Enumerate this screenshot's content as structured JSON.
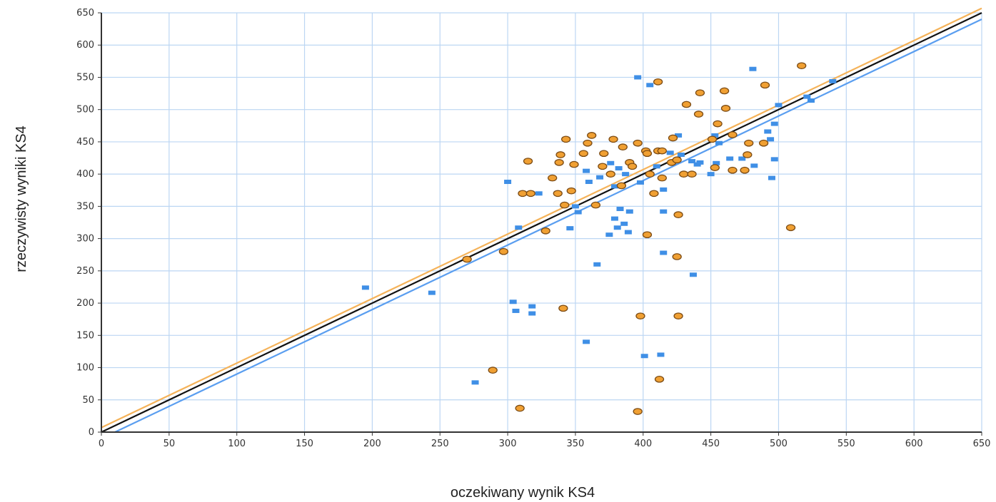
{
  "chart_data": {
    "type": "scatter",
    "title": "",
    "xlabel": "oczekiwany wynik KS4",
    "ylabel": "rzeczywisty wyniki KS4",
    "xlim": [
      0,
      650
    ],
    "ylim": [
      0,
      650
    ],
    "x_ticks": [
      0,
      50,
      100,
      150,
      200,
      250,
      300,
      350,
      400,
      450,
      500,
      550,
      600,
      650
    ],
    "y_ticks": [
      0,
      50,
      100,
      150,
      200,
      250,
      300,
      350,
      400,
      450,
      500,
      550,
      600,
      650
    ],
    "grid": true,
    "legend": "none",
    "colors": {
      "grid": "#bcd6f3",
      "axis": "#333333",
      "blue_marker": "#3f8fe6",
      "orange_marker_fill": "#f0a033",
      "orange_marker_stroke": "#7a4a14",
      "line_black": "#111111",
      "line_orange": "#f5b35a",
      "line_blue": "#5a9ef0"
    },
    "lines": [
      {
        "color": "orange",
        "points": [
          [
            0,
            7
          ],
          [
            650,
            657
          ]
        ]
      },
      {
        "color": "black",
        "points": [
          [
            0,
            0
          ],
          [
            650,
            650
          ]
        ]
      },
      {
        "color": "blue",
        "points": [
          [
            10,
            0
          ],
          [
            650,
            640
          ]
        ]
      }
    ],
    "series": [
      {
        "marker": "square",
        "color": "blue",
        "points": [
          [
            195,
            224
          ],
          [
            244,
            216
          ],
          [
            276,
            77
          ],
          [
            300,
            388
          ],
          [
            304,
            202
          ],
          [
            306,
            188
          ],
          [
            308,
            317
          ],
          [
            318,
            184
          ],
          [
            318,
            195
          ],
          [
            323,
            370
          ],
          [
            346,
            316
          ],
          [
            350,
            350
          ],
          [
            352,
            341
          ],
          [
            358,
            405
          ],
          [
            358,
            140
          ],
          [
            360,
            388
          ],
          [
            366,
            260
          ],
          [
            368,
            395
          ],
          [
            375,
            306
          ],
          [
            376,
            417
          ],
          [
            379,
            381
          ],
          [
            379,
            331
          ],
          [
            381,
            317
          ],
          [
            382,
            409
          ],
          [
            383,
            346
          ],
          [
            386,
            323
          ],
          [
            387,
            400
          ],
          [
            389,
            310
          ],
          [
            390,
            342
          ],
          [
            396,
            550
          ],
          [
            398,
            387
          ],
          [
            401,
            118
          ],
          [
            405,
            538
          ],
          [
            410,
            412
          ],
          [
            413,
            120
          ],
          [
            415,
            342
          ],
          [
            415,
            278
          ],
          [
            415,
            376
          ],
          [
            420,
            433
          ],
          [
            422,
            418
          ],
          [
            426,
            460
          ],
          [
            428,
            430
          ],
          [
            437,
            244
          ],
          [
            436,
            420
          ],
          [
            440,
            415
          ],
          [
            442,
            418
          ],
          [
            450,
            400
          ],
          [
            453,
            460
          ],
          [
            454,
            417
          ],
          [
            456,
            448
          ],
          [
            464,
            424
          ],
          [
            473,
            424
          ],
          [
            481,
            563
          ],
          [
            482,
            413
          ],
          [
            492,
            466
          ],
          [
            494,
            454
          ],
          [
            495,
            394
          ],
          [
            497,
            423
          ],
          [
            497,
            478
          ],
          [
            500,
            507
          ],
          [
            521,
            520
          ],
          [
            524,
            514
          ],
          [
            540,
            544
          ]
        ]
      },
      {
        "marker": "circle",
        "color": "orange",
        "points": [
          [
            270,
            268
          ],
          [
            289,
            96
          ],
          [
            297,
            280
          ],
          [
            309,
            37
          ],
          [
            311,
            370
          ],
          [
            315,
            420
          ],
          [
            317,
            370
          ],
          [
            328,
            312
          ],
          [
            333,
            394
          ],
          [
            337,
            370
          ],
          [
            338,
            418
          ],
          [
            339,
            430
          ],
          [
            342,
            352
          ],
          [
            343,
            454
          ],
          [
            341,
            192
          ],
          [
            347,
            374
          ],
          [
            349,
            415
          ],
          [
            356,
            432
          ],
          [
            359,
            448
          ],
          [
            362,
            460
          ],
          [
            365,
            352
          ],
          [
            370,
            412
          ],
          [
            371,
            432
          ],
          [
            376,
            400
          ],
          [
            378,
            454
          ],
          [
            384,
            382
          ],
          [
            385,
            442
          ],
          [
            390,
            418
          ],
          [
            392,
            412
          ],
          [
            396,
            448
          ],
          [
            396,
            32
          ],
          [
            398,
            180
          ],
          [
            402,
            436
          ],
          [
            403,
            306
          ],
          [
            403,
            432
          ],
          [
            405,
            400
          ],
          [
            408,
            370
          ],
          [
            411,
            436
          ],
          [
            411,
            543
          ],
          [
            412,
            82
          ],
          [
            414,
            436
          ],
          [
            414,
            394
          ],
          [
            421,
            418
          ],
          [
            422,
            456
          ],
          [
            425,
            422
          ],
          [
            425,
            272
          ],
          [
            426,
            337
          ],
          [
            426,
            180
          ],
          [
            430,
            400
          ],
          [
            432,
            508
          ],
          [
            436,
            400
          ],
          [
            441,
            493
          ],
          [
            442,
            526
          ],
          [
            451,
            454
          ],
          [
            453,
            410
          ],
          [
            455,
            478
          ],
          [
            460,
            529
          ],
          [
            461,
            502
          ],
          [
            466,
            461
          ],
          [
            466,
            406
          ],
          [
            475,
            406
          ],
          [
            477,
            430
          ],
          [
            478,
            448
          ],
          [
            489,
            448
          ],
          [
            490,
            538
          ],
          [
            509,
            317
          ],
          [
            517,
            568
          ]
        ]
      }
    ]
  }
}
